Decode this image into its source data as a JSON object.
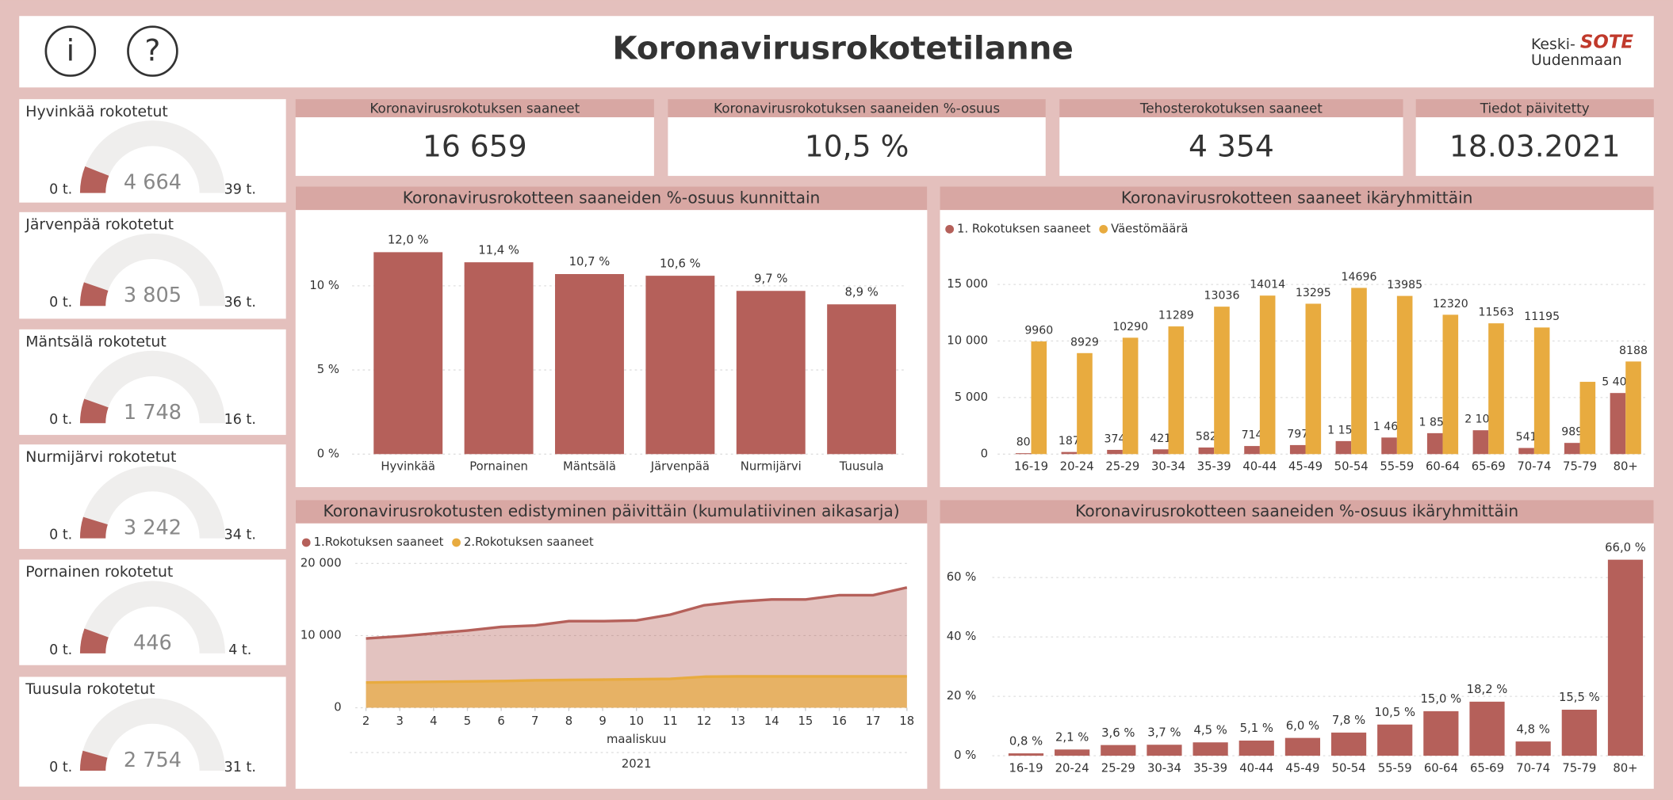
{
  "header": {
    "info_icon": "i",
    "help_icon": "?",
    "title": "Koronavirusrokotetilanne",
    "logo_top": "Keski-",
    "logo_brand": "SOTE",
    "logo_bottom": "Uudenmaan"
  },
  "cards": [
    {
      "title": "Koronavirusrokotuksen saaneet",
      "value": "16 659"
    },
    {
      "title": "Koronavirusrokotuksen saaneiden %-osuus",
      "value": "10,5 %"
    },
    {
      "title": "Tehosterokotuksen saaneet",
      "value": "4 354"
    },
    {
      "title": "Tiedot päivitetty",
      "value": "18.03.2021"
    }
  ],
  "chart_data": [
    {
      "type": "gauge",
      "title": "Hyvinkää rokotetut",
      "value": 4664,
      "value_label": "4 664",
      "min": {
        "value": 0,
        "label": "0 t."
      },
      "max": {
        "value": 39000,
        "label": "39 t."
      },
      "color": "#b5605a"
    },
    {
      "type": "gauge",
      "title": "Järvenpää rokotetut",
      "value": 3805,
      "value_label": "3 805",
      "min": {
        "value": 0,
        "label": "0 t."
      },
      "max": {
        "value": 36000,
        "label": "36 t."
      },
      "color": "#b5605a"
    },
    {
      "type": "gauge",
      "title": "Mäntsälä rokotetut",
      "value": 1748,
      "value_label": "1 748",
      "min": {
        "value": 0,
        "label": "0 t."
      },
      "max": {
        "value": 16000,
        "label": "16 t."
      },
      "color": "#b5605a"
    },
    {
      "type": "gauge",
      "title": "Nurmijärvi rokotetut",
      "value": 3242,
      "value_label": "3 242",
      "min": {
        "value": 0,
        "label": "0 t."
      },
      "max": {
        "value": 34000,
        "label": "34 t."
      },
      "color": "#b5605a"
    },
    {
      "type": "gauge",
      "title": "Pornainen rokotetut",
      "value": 446,
      "value_label": "446",
      "min": {
        "value": 0,
        "label": "0 t."
      },
      "max": {
        "value": 4000,
        "label": "4 t."
      },
      "color": "#b5605a"
    },
    {
      "type": "gauge",
      "title": "Tuusula rokotetut",
      "value": 2754,
      "value_label": "2 754",
      "min": {
        "value": 0,
        "label": "0 t."
      },
      "max": {
        "value": 31000,
        "label": "31 t."
      },
      "color": "#b5605a"
    },
    {
      "type": "bar",
      "title": "Koronavirusrokotteen saaneiden %-osuus kunnittain",
      "categories": [
        "Hyvinkää",
        "Pornainen",
        "Mäntsälä",
        "Järvenpää",
        "Nurmijärvi",
        "Tuusula"
      ],
      "values": [
        12.0,
        11.4,
        10.7,
        10.6,
        9.7,
        8.9
      ],
      "value_labels": [
        "12,0 %",
        "11,4 %",
        "10,7 %",
        "10,6 %",
        "9,7 %",
        "8,9 %"
      ],
      "color": "#b5605a",
      "ylim": [
        0,
        14
      ],
      "yticks": [
        {
          "value": 0,
          "label": "0 %"
        },
        {
          "value": 5,
          "label": "5 %"
        },
        {
          "value": 10,
          "label": "10 %"
        }
      ],
      "grid": true
    },
    {
      "type": "grouped_bar",
      "title": "Koronavirusrokotteen saaneet ikäryhmittäin",
      "categories": [
        "16-19",
        "20-24",
        "25-29",
        "30-34",
        "35-39",
        "40-44",
        "45-49",
        "50-54",
        "55-59",
        "60-64",
        "65-69",
        "70-74",
        "75-79",
        "80+"
      ],
      "series": [
        {
          "name": "1. Rokotuksen saaneet",
          "color": "#b5605a",
          "values": [
            80,
            187,
            374,
            421,
            582,
            714,
            797,
            1150,
            1465,
            1850,
            2108,
            541,
            989,
            5401
          ],
          "value_labels": [
            "80",
            "187",
            "374",
            "421",
            "582",
            "714",
            "797",
            "1 150",
            "1 465",
            "1 850",
            "2 108",
            "541",
            "989",
            "5 401"
          ]
        },
        {
          "name": "Väestömäärä",
          "color": "#e8ab3f",
          "values": [
            9960,
            8929,
            10290,
            11289,
            13036,
            14014,
            13295,
            14696,
            13985,
            12320,
            11563,
            11195,
            6390,
            8188
          ],
          "value_labels": [
            "9960",
            "8929",
            "10290",
            "11289",
            "13036",
            "14014",
            "13295",
            "14696",
            "13985",
            "12320",
            "11563",
            "11195",
            null,
            "8188"
          ]
        }
      ],
      "ylim": [
        0,
        18000
      ],
      "yticks": [
        0,
        {
          "value": 5000,
          "label": "5 000"
        },
        {
          "value": 10000,
          "label": "10 000"
        },
        {
          "value": 15000,
          "label": "15 000"
        }
      ],
      "grid": true,
      "legend": "top-left"
    },
    {
      "type": "area",
      "title": "Koronavirusrokotusten edistyminen päivittäin (kumulatiivinen aikasarja)",
      "x": [
        2,
        3,
        4,
        5,
        6,
        7,
        8,
        9,
        10,
        11,
        12,
        13,
        14,
        15,
        16,
        17,
        18
      ],
      "xlabel": "maaliskuu",
      "xlabel_year": "2021",
      "series": [
        {
          "name": "1.Rokotuksen saaneet",
          "color": "#b5605a",
          "values": [
            9600,
            9900,
            10300,
            10700,
            11200,
            11400,
            12000,
            12000,
            12100,
            12900,
            14200,
            14700,
            15000,
            15000,
            15600,
            15600,
            16659
          ]
        },
        {
          "name": "2.Rokotuksen saaneet",
          "color": "#e8ab3f",
          "values": [
            3500,
            3550,
            3600,
            3650,
            3700,
            3800,
            3850,
            3900,
            3950,
            4000,
            4300,
            4350,
            4350,
            4350,
            4350,
            4350,
            4354
          ]
        }
      ],
      "xlim": [
        2,
        18
      ],
      "xticks": [
        2,
        3,
        4,
        5,
        6,
        7,
        8,
        9,
        10,
        11,
        12,
        13,
        14,
        15,
        16,
        17,
        18
      ],
      "ylim": [
        0,
        22000
      ],
      "yticks": [
        0,
        {
          "value": 10000,
          "label": "10 000"
        },
        {
          "value": 20000,
          "label": "20 000"
        }
      ],
      "grid": true,
      "legend": "top-left"
    },
    {
      "type": "bar",
      "title": "Koronavirusrokotteen saaneiden %-osuus ikäryhmittäin",
      "categories": [
        "16-19",
        "20-24",
        "25-29",
        "30-34",
        "35-39",
        "40-44",
        "45-49",
        "50-54",
        "55-59",
        "60-64",
        "65-69",
        "70-74",
        "75-79",
        "80+"
      ],
      "values": [
        0.8,
        2.1,
        3.6,
        3.7,
        4.5,
        5.1,
        6.0,
        7.8,
        10.5,
        15.0,
        18.2,
        4.8,
        15.5,
        66.0
      ],
      "value_labels": [
        "0,8 %",
        "2,1 %",
        "3,6 %",
        "3,7 %",
        "4,5 %",
        "5,1 %",
        "6,0 %",
        "7,8 %",
        "10,5 %",
        "15,0 %",
        "18,2 %",
        "4,8 %",
        "15,5 %",
        "66,0 %"
      ],
      "color": "#b5605a",
      "ylim": [
        0,
        75
      ],
      "yticks": [
        {
          "value": 0,
          "label": "0 %"
        },
        {
          "value": 20,
          "label": "20 %"
        },
        {
          "value": 40,
          "label": "40 %"
        },
        {
          "value": 60,
          "label": "60 %"
        }
      ],
      "grid": true
    }
  ]
}
